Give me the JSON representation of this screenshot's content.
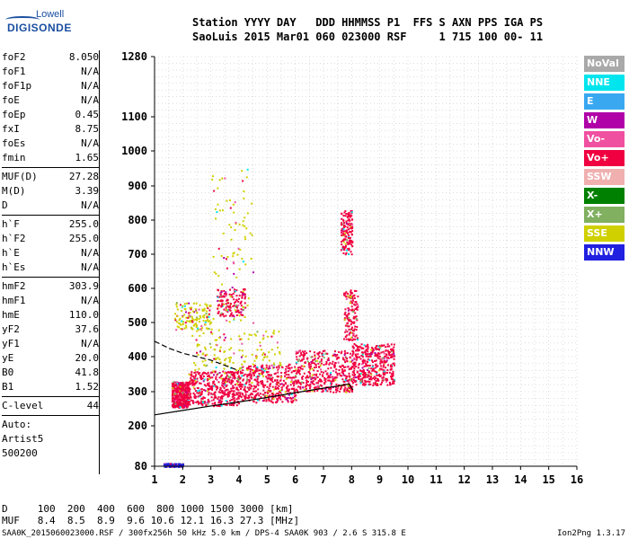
{
  "logo": {
    "line1": "Lowell",
    "line2": "DIGISONDE"
  },
  "header": {
    "line1": "Station YYYY DAY   DDD HHMMSS P1  FFS S AXN PPS IGA PS",
    "line2": "SaoLuis 2015 Mar01 060 023000 RSF     1 715 100 00- 11"
  },
  "params_group1": [
    {
      "name": "foF2",
      "value": "8.050"
    },
    {
      "name": "foF1",
      "value": "N/A"
    },
    {
      "name": "foF1p",
      "value": "N/A"
    },
    {
      "name": "foE",
      "value": "N/A"
    },
    {
      "name": "foEp",
      "value": "0.45"
    },
    {
      "name": "fxI",
      "value": "8.75"
    },
    {
      "name": "foEs",
      "value": "N/A"
    },
    {
      "name": "fmin",
      "value": "1.65"
    }
  ],
  "params_group2": [
    {
      "name": "MUF(D)",
      "value": "27.28"
    },
    {
      "name": "M(D)",
      "value": "3.39"
    },
    {
      "name": "D",
      "value": "N/A"
    }
  ],
  "params_group3": [
    {
      "name": "h`F",
      "value": "255.0"
    },
    {
      "name": "h`F2",
      "value": "255.0"
    },
    {
      "name": "h`E",
      "value": "N/A"
    },
    {
      "name": "h`Es",
      "value": "N/A"
    }
  ],
  "params_group4": [
    {
      "name": "hmF2",
      "value": "303.9"
    },
    {
      "name": "hmF1",
      "value": "N/A"
    },
    {
      "name": "hmE",
      "value": "110.0"
    },
    {
      "name": "yF2",
      "value": "37.6"
    },
    {
      "name": "yF1",
      "value": "N/A"
    },
    {
      "name": "yE",
      "value": "20.0"
    },
    {
      "name": "B0",
      "value": "41.8"
    },
    {
      "name": "B1",
      "value": "1.52"
    }
  ],
  "params_group5": [
    {
      "name": "C-level",
      "value": "44"
    }
  ],
  "autoscaling": [
    "Auto:",
    "Artist5",
    "500200"
  ],
  "legend": [
    {
      "label": "NoVal",
      "color": "#a9a9a9"
    },
    {
      "label": "NNE",
      "color": "#00e5ee"
    },
    {
      "label": "E",
      "color": "#3aa8f0"
    },
    {
      "label": "W",
      "color": "#b000a8"
    },
    {
      "label": "Vo-",
      "color": "#f050a0"
    },
    {
      "label": "Vo+",
      "color": "#f00040"
    },
    {
      "label": "SSW",
      "color": "#f0b0b0"
    },
    {
      "label": "X-",
      "color": "#008000"
    },
    {
      "label": "X+",
      "color": "#80b060"
    },
    {
      "label": "SSE",
      "color": "#d0d000"
    },
    {
      "label": "NNW",
      "color": "#2020e0"
    }
  ],
  "footer": {
    "line1": "D     100  200  400  600  800 1000 1500 3000 [km]",
    "line2": "MUF   8.4  8.5  8.9  9.6 10.6 12.1 16.3 27.3 [MHz]",
    "bottom": "SAA0K_2015060023000.RSF / 300fx256h 50 kHz 5.0 km / DPS-4 SAA0K 903 / 2.6 S 315.8 E",
    "version": "Ion2Png 1.3.17"
  },
  "chart_data": {
    "type": "scatter",
    "title": "",
    "xlabel": "",
    "ylabel": "",
    "xlim": [
      1,
      16
    ],
    "x_ticks": [
      1,
      2,
      3,
      4,
      5,
      6,
      7,
      8,
      9,
      10,
      11,
      12,
      13,
      14,
      15,
      16
    ],
    "y_ticks": [
      80,
      200,
      300,
      400,
      500,
      600,
      700,
      800,
      900,
      1000,
      1100,
      1280
    ],
    "y_scale": "nonlinear",
    "grid": true,
    "legend_placement": "right",
    "trace": {
      "name": "",
      "x": [
        1.0,
        2.0,
        3.0,
        4.0,
        5.0,
        6.0,
        7.0,
        7.5,
        7.9,
        8.05
      ],
      "y": [
        232,
        245,
        258,
        270,
        283,
        297,
        310,
        316,
        322,
        305
      ]
    },
    "trace2": {
      "name": "",
      "x": [
        1.0,
        1.5,
        2.0,
        2.5,
        3.0,
        4.0
      ],
      "y": [
        445,
        425,
        410,
        400,
        390,
        360
      ]
    },
    "echo_clusters": [
      {
        "x_range": [
          1.6,
          2.2
        ],
        "y_range": [
          255,
          330
        ],
        "mode": "Vo+",
        "density": "high"
      },
      {
        "x_range": [
          2.2,
          4.0
        ],
        "y_range": [
          260,
          360
        ],
        "mode": "Vo+",
        "density": "high"
      },
      {
        "x_range": [
          4.0,
          6.0
        ],
        "y_range": [
          270,
          380
        ],
        "mode": "Vo+",
        "density": "high"
      },
      {
        "x_range": [
          6.0,
          8.0
        ],
        "y_range": [
          300,
          420
        ],
        "mode": "Vo+",
        "density": "high"
      },
      {
        "x_range": [
          8.0,
          9.5
        ],
        "y_range": [
          320,
          440
        ],
        "mode": "Vo+",
        "density": "high"
      },
      {
        "x_range": [
          2.3,
          5.5
        ],
        "y_range": [
          360,
          480
        ],
        "mode": "SSE",
        "density": "medium"
      },
      {
        "x_range": [
          3.0,
          4.5
        ],
        "y_range": [
          500,
          950
        ],
        "mode": "SSE",
        "density": "low"
      },
      {
        "x_range": [
          1.7,
          3.0
        ],
        "y_range": [
          480,
          560
        ],
        "mode": "SSE",
        "density": "medium"
      },
      {
        "x_range": [
          3.2,
          4.2
        ],
        "y_range": [
          520,
          600
        ],
        "mode": "Vo+",
        "density": "medium"
      },
      {
        "x_range": [
          7.6,
          8.0
        ],
        "y_range": [
          700,
          830
        ],
        "mode": "Vo+",
        "density": "medium"
      },
      {
        "x_range": [
          7.7,
          8.2
        ],
        "y_range": [
          450,
          600
        ],
        "mode": "Vo+",
        "density": "medium"
      },
      {
        "x_range": [
          1.3,
          2.0
        ],
        "y_range": [
          80,
          90
        ],
        "mode": "NNW",
        "density": "medium"
      }
    ]
  }
}
